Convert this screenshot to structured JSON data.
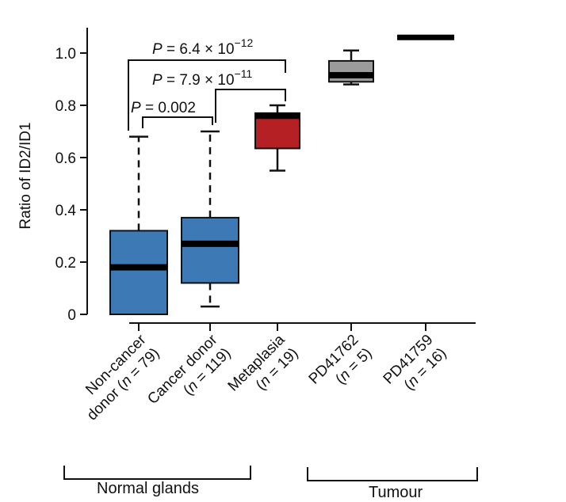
{
  "chart_data": {
    "type": "box",
    "ylabel": "Ratio of ID2/ID1",
    "ylim": [
      0,
      1.1
    ],
    "yticks": [
      "0",
      "0.2",
      "0.4",
      "0.6",
      "0.8",
      "1.0"
    ],
    "categories": [
      {
        "line1": "Non-cancer",
        "line2": "donor (n = 79)",
        "pre": "donor (",
        "n": "n",
        "post": " = 79)"
      },
      {
        "line1": "Cancer donor",
        "line2": "(n = 119)",
        "pre": "(",
        "n": "n",
        "post": " = 119)"
      },
      {
        "line1": "Metaplasia",
        "line2": "(n = 19)",
        "pre": "(",
        "n": "n",
        "post": " = 19)"
      },
      {
        "line1": "PD41762",
        "line2": "(n = 5)",
        "pre": "(",
        "n": "n",
        "post": " = 5)"
      },
      {
        "line1": "PD41759",
        "line2": "(n = 16)",
        "pre": "(",
        "n": "n",
        "post": " = 16)"
      }
    ],
    "boxes": [
      {
        "whisker_low": 0.0,
        "q1": 0.0,
        "median": 0.18,
        "q3": 0.32,
        "whisker_high": 0.68,
        "color": "#3d7ab5"
      },
      {
        "whisker_low": 0.03,
        "q1": 0.12,
        "median": 0.27,
        "q3": 0.37,
        "whisker_high": 0.7,
        "color": "#3d7ab5"
      },
      {
        "whisker_low": 0.55,
        "q1": 0.635,
        "median": 0.76,
        "q3": 0.77,
        "whisker_high": 0.8,
        "color": "#b52025"
      },
      {
        "whisker_low": 0.88,
        "q1": 0.89,
        "median": 0.915,
        "q3": 0.97,
        "whisker_high": 1.01,
        "color": "#9b9b9b"
      },
      {
        "whisker_low": 1.06,
        "q1": 1.06,
        "median": 1.06,
        "q3": 1.06,
        "whisker_high": 1.06,
        "color": "#9b9b9b"
      }
    ],
    "comparisons": [
      {
        "from": 0,
        "to": 1,
        "label_p": "P",
        "label_rest": " = 0.002",
        "exponent": ""
      },
      {
        "from": 1,
        "to": 2,
        "label_p": "P",
        "label_rest": " = 7.9 × 10",
        "exponent": "−11"
      },
      {
        "from": 0,
        "to": 2,
        "label_p": "P",
        "label_rest": " = 6.4 × 10",
        "exponent": "−12"
      }
    ],
    "groups": [
      {
        "label": "Normal glands"
      },
      {
        "label": "Tumour"
      }
    ]
  }
}
